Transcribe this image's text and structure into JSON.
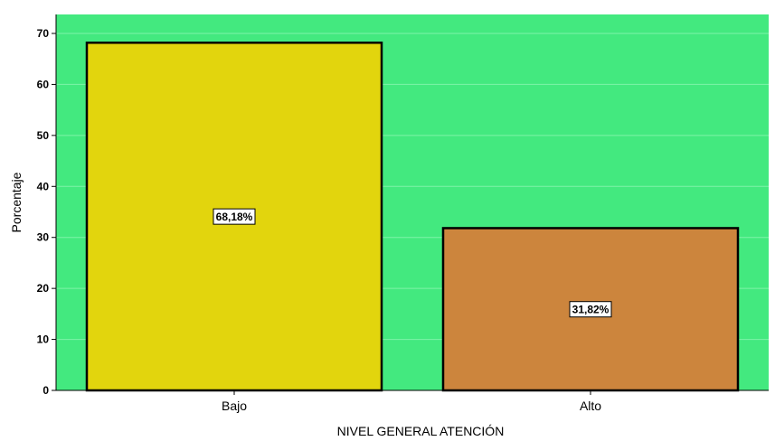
{
  "chart_data": {
    "type": "bar",
    "categories": [
      "Bajo",
      "Alto"
    ],
    "values": [
      68.18,
      31.82
    ],
    "data_labels": [
      "68,18%",
      "31,82%"
    ],
    "xlabel": "NIVEL GENERAL ATENCIÓN",
    "ylabel": "Porcentaje",
    "ylim": [
      0,
      70
    ],
    "yticks": [
      0,
      10,
      20,
      30,
      40,
      50,
      60,
      70
    ],
    "grid": true,
    "colors": {
      "plot_background": "#43e97f",
      "gridline": "#7ef3a8",
      "bar_outline": "#000000",
      "bars": [
        "#e2d50d",
        "#cc853d"
      ],
      "label_box": "#ffffff"
    }
  }
}
